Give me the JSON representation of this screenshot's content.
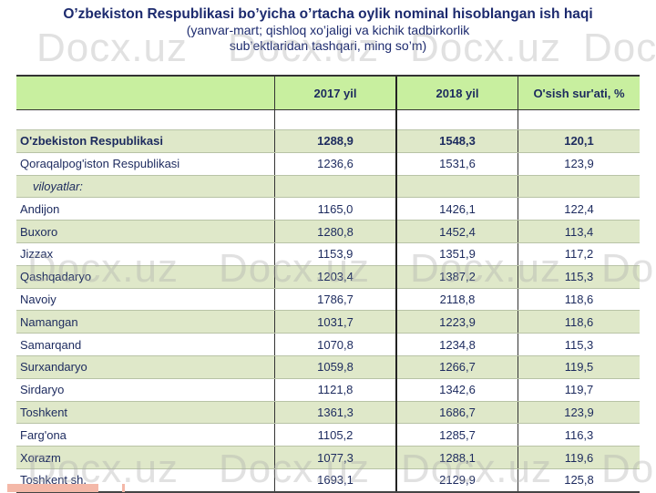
{
  "title": {
    "line1": "O’zbekiston Respublikasi bo’yicha o’rtacha oylik nominal hisoblangan ish haqi",
    "line2": "(yanvar-mart; qishloq xo’jaligi va kichik tadbirkorlik",
    "line3": "sub’ektlaridan tashqari, ming so’m)"
  },
  "watermark": "Docx.uz",
  "table": {
    "headers": [
      "",
      "2017 yil",
      "2018 yil",
      "O'sish sur'ati, %"
    ],
    "rows": [
      {
        "name": "O'zbekiston Respublikasi",
        "v2017": "1288,9",
        "v2018": "1548,3",
        "growth": "120,1"
      },
      {
        "name": "Qoraqalpog'iston Respublikasi",
        "v2017": "1236,6",
        "v2018": "1531,6",
        "growth": "123,9"
      },
      {
        "name": "viloyatlar:",
        "v2017": "",
        "v2018": "",
        "growth": ""
      },
      {
        "name": "Andijon",
        "v2017": "1165,0",
        "v2018": "1426,1",
        "growth": "122,4"
      },
      {
        "name": "Buxoro",
        "v2017": "1280,8",
        "v2018": "1452,4",
        "growth": "113,4"
      },
      {
        "name": "Jizzax",
        "v2017": "1153,9",
        "v2018": "1351,9",
        "growth": "117,2"
      },
      {
        "name": "Qashqadaryo",
        "v2017": "1203,4",
        "v2018": "1387,2",
        "growth": "115,3"
      },
      {
        "name": "Navoiy",
        "v2017": "1786,7",
        "v2018": "2118,8",
        "growth": "118,6"
      },
      {
        "name": "Namangan",
        "v2017": "1031,7",
        "v2018": "1223,9",
        "growth": "118,6"
      },
      {
        "name": "Samarqand",
        "v2017": "1070,8",
        "v2018": "1234,8",
        "growth": "115,3"
      },
      {
        "name": "Surxandaryo",
        "v2017": "1059,8",
        "v2018": "1266,7",
        "growth": "119,5"
      },
      {
        "name": "Sirdaryo",
        "v2017": "1121,8",
        "v2018": "1342,6",
        "growth": "119,7"
      },
      {
        "name": "Toshkent",
        "v2017": "1361,3",
        "v2018": "1686,7",
        "growth": "123,9"
      },
      {
        "name": "Farg'ona",
        "v2017": "1105,2",
        "v2018": "1285,7",
        "growth": "116,3"
      },
      {
        "name": "Xorazm",
        "v2017": "1077,3",
        "v2018": "1288,1",
        "growth": "119,6"
      },
      {
        "name": "Toshkent sh.",
        "v2017": "1693,1",
        "v2018": "2129,9",
        "growth": "125,8"
      }
    ]
  },
  "colors": {
    "header": "#c8ef9f",
    "shaded": "#dfe8c9",
    "title": "#1c2a6e"
  }
}
